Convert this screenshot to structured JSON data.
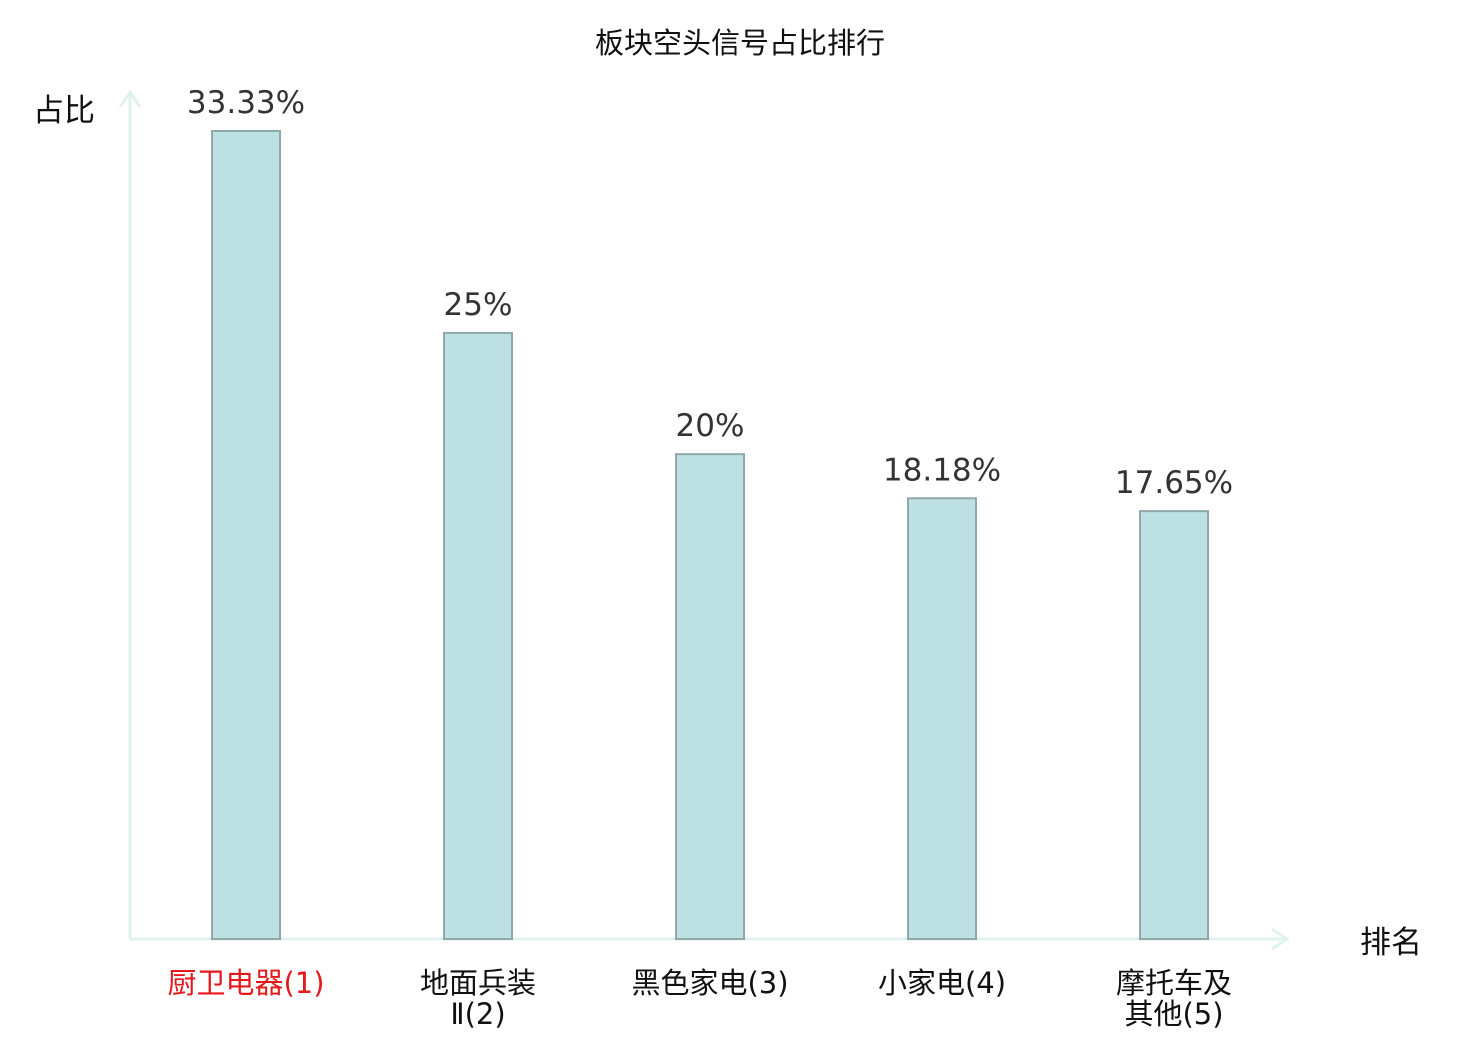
{
  "chart_data": {
    "type": "bar",
    "title": "板块空头信号占比排行",
    "ylabel": "占比",
    "xlabel": "排名",
    "categories": [
      [
        "厨卫电器(1)"
      ],
      [
        "地面兵装",
        "Ⅱ(2)"
      ],
      [
        "黑色家电(3)"
      ],
      [
        "小家电(4)"
      ],
      [
        "摩托车及",
        "其他(5)"
      ]
    ],
    "values": [
      33.33,
      25,
      20,
      18.18,
      17.65
    ],
    "value_labels": [
      "33.33%",
      "25%",
      "20%",
      "18.18%",
      "17.65%"
    ],
    "highlight_index": 0,
    "grid": false,
    "ylim": [
      0,
      33.33
    ],
    "colors": {
      "bar_fill": "#bde0e2",
      "bar_stroke": "#8fa9aa",
      "axis": "#e0f2f0",
      "highlight_label": "#e31a1c",
      "label": "#111111"
    }
  }
}
